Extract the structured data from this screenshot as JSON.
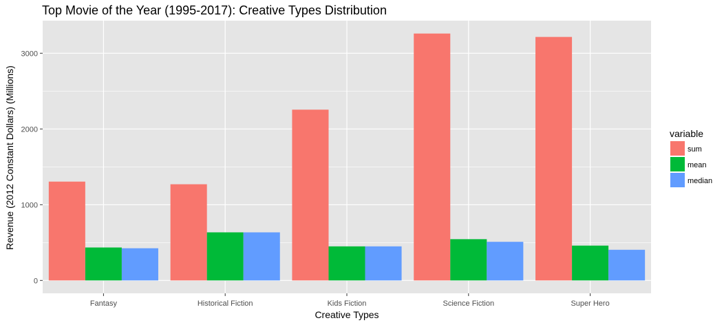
{
  "chart_data": {
    "type": "bar",
    "title": "Top Movie of the Year (1995-2017): Creative Types Distribution",
    "xlabel": "Creative Types",
    "ylabel": "Revenue (2012 Constant Dollars) (Millions)",
    "categories": [
      "Fantasy",
      "Historical Fiction",
      "Kids Fiction",
      "Science Fiction",
      "Super Hero"
    ],
    "series": [
      {
        "name": "sum",
        "color": "#F8766D",
        "values": [
          1305,
          1270,
          2255,
          3260,
          3215
        ]
      },
      {
        "name": "mean",
        "color": "#00BA38",
        "values": [
          435,
          635,
          450,
          545,
          460
        ]
      },
      {
        "name": "median",
        "color": "#619CFF",
        "values": [
          425,
          635,
          450,
          510,
          405
        ]
      }
    ],
    "ylim": [
      -170,
      3430
    ],
    "yticks": [
      0,
      1000,
      2000,
      3000
    ],
    "grid": true,
    "legend": {
      "title": "variable",
      "position": "right"
    },
    "panel_background": "#E5E5E5",
    "grid_color": "#FFFFFF"
  }
}
